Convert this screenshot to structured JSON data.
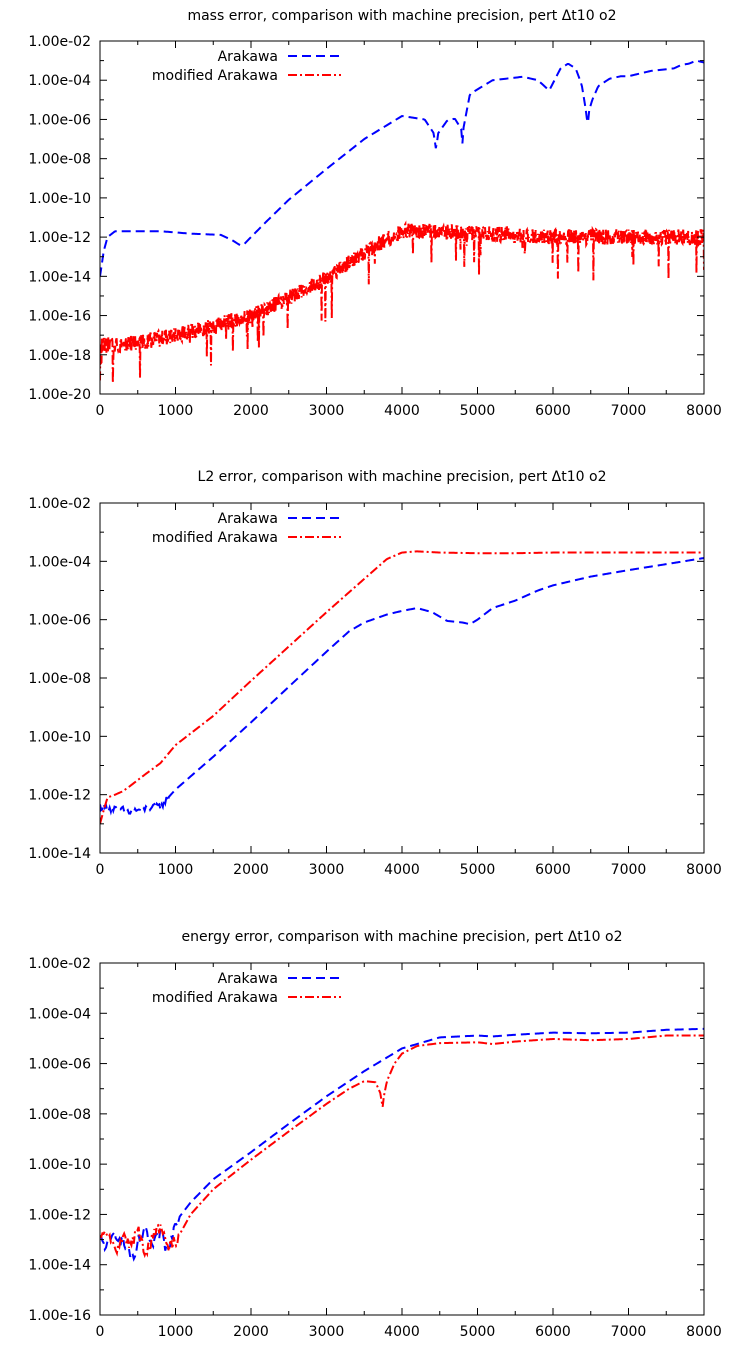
{
  "chart_data": [
    {
      "type": "line",
      "title": "mass error, comparison with machine precision, pert Δt10 o2",
      "xlabel": "",
      "ylabel": "",
      "xlim": [
        0,
        8000
      ],
      "ylim": [
        1e-20,
        0.01
      ],
      "yscale": "log",
      "grid": false,
      "legend_position": "top-left",
      "x_ticks": [
        0,
        1000,
        2000,
        3000,
        4000,
        5000,
        6000,
        7000,
        8000
      ],
      "x_tick_labels": [
        "0",
        "1000",
        "2000",
        "3000",
        "4000",
        "5000",
        "6000",
        "7000",
        "8000"
      ],
      "y_ticks": [
        0.01,
        0.0001,
        1e-06,
        1e-08,
        1e-10,
        1e-12,
        1e-14,
        1e-16,
        1e-18,
        1e-20
      ],
      "y_tick_labels": [
        "1.00e-02",
        "1.00e-04",
        "1.00e-06",
        "1.00e-08",
        "1.00e-10",
        "1.00e-12",
        "1.00e-14",
        "1.00e-16",
        "1.00e-18",
        "1.00e-20"
      ],
      "series": [
        {
          "name": "Arakawa",
          "color": "#0000ff",
          "dash": "dashed",
          "x": [
            0,
            50,
            100,
            200,
            400,
            800,
            1200,
            1600,
            1750,
            1850,
            1900,
            2000,
            2200,
            2500,
            3000,
            3500,
            4000,
            4300,
            4420,
            4450,
            4480,
            4600,
            4700,
            4790,
            4800,
            4810,
            4900,
            5200,
            5600,
            5800,
            5950,
            6100,
            6200,
            6300,
            6380,
            6430,
            6460,
            6480,
            6520,
            6600,
            6750,
            6900,
            7000,
            7300,
            7600,
            7700,
            7800,
            7900,
            8000
          ],
          "y": [
            1e-14,
            2e-13,
            1e-12,
            2e-12,
            2e-12,
            2e-12,
            1.5e-12,
            1.3e-12,
            7e-13,
            4e-13,
            4e-13,
            1e-12,
            6e-12,
            8e-11,
            3e-09,
            1e-07,
            1.5e-06,
            1e-06,
            2e-07,
            3e-08,
            2e-07,
            9e-07,
            1.1e-06,
            3e-07,
            6e-08,
            3e-07,
            2e-05,
            0.0001,
            0.00015,
            0.0001,
            3e-05,
            0.0004,
            0.0007,
            0.0004,
            6e-05,
            4e-06,
            5e-07,
            3e-06,
            1e-05,
            5e-05,
            0.00012,
            0.00016,
            0.00016,
            0.0003,
            0.0004,
            0.0006,
            0.0007,
            0.001,
            0.0008
          ]
        },
        {
          "name": "modified Arakawa",
          "color": "#ff0000",
          "dash": "dash-dot",
          "x": [
            0,
            500,
            1000,
            1500,
            2000,
            2500,
            3000,
            3500,
            3800,
            4000,
            4500,
            5000,
            5500,
            6000,
            6500,
            7000,
            7500,
            8000
          ],
          "y": [
            3e-18,
            4e-18,
            1e-17,
            3e-17,
            1e-16,
            8e-16,
            8e-15,
            1.5e-13,
            8e-13,
            2e-12,
            2e-12,
            1.5e-12,
            1.2e-12,
            1e-12,
            1e-12,
            1e-12,
            1e-12,
            1e-12
          ]
        }
      ]
    },
    {
      "type": "line",
      "title": "L2 error, comparison with machine precision, pert Δt10 o2",
      "xlabel": "",
      "ylabel": "",
      "xlim": [
        0,
        8000
      ],
      "ylim": [
        1e-14,
        0.01
      ],
      "yscale": "log",
      "grid": false,
      "legend_position": "top-left",
      "x_ticks": [
        0,
        1000,
        2000,
        3000,
        4000,
        5000,
        6000,
        7000,
        8000
      ],
      "x_tick_labels": [
        "0",
        "1000",
        "2000",
        "3000",
        "4000",
        "5000",
        "6000",
        "7000",
        "8000"
      ],
      "y_ticks": [
        0.01,
        0.0001,
        1e-06,
        1e-08,
        1e-10,
        1e-12,
        1e-14
      ],
      "y_tick_labels": [
        "1.00e-02",
        "1.00e-04",
        "1.00e-06",
        "1.00e-08",
        "1.00e-10",
        "1.00e-12",
        "1.00e-14"
      ],
      "series": [
        {
          "name": "Arakawa",
          "color": "#0000ff",
          "dash": "dashed",
          "x": [
            0,
            100,
            200,
            300,
            400,
            500,
            600,
            700,
            800,
            1000,
            1500,
            2000,
            2500,
            3000,
            3300,
            3500,
            3800,
            4000,
            4200,
            4400,
            4600,
            4800,
            4900,
            5000,
            5200,
            5500,
            5800,
            6000,
            6500,
            7000,
            7500,
            8000
          ],
          "y": [
            4e-13,
            3.5e-13,
            3.2e-13,
            3e-13,
            2.5e-13,
            3e-13,
            3.3e-13,
            3.5e-13,
            4e-13,
            1.5e-12,
            2e-11,
            3e-10,
            5e-09,
            8e-08,
            4e-07,
            8e-07,
            1.5e-06,
            2e-06,
            2.5e-06,
            1.8e-06,
            9e-07,
            8e-07,
            7e-07,
            1e-06,
            2.5e-06,
            4.5e-06,
            1e-05,
            1.5e-05,
            3e-05,
            5e-05,
            8e-05,
            0.00013
          ]
        },
        {
          "name": "modified Arakawa",
          "color": "#ff0000",
          "dash": "dash-dot",
          "x": [
            0,
            50,
            100,
            200,
            300,
            400,
            600,
            800,
            1000,
            1500,
            2000,
            2500,
            3000,
            3500,
            3800,
            4000,
            4200,
            4500,
            5000,
            5500,
            6000,
            6500,
            7000,
            7500,
            8000
          ],
          "y": [
            1e-13,
            3e-13,
            8e-13,
            1e-12,
            1.3e-12,
            2e-12,
            5e-12,
            1.2e-11,
            5e-11,
            5e-10,
            8e-09,
            1.2e-07,
            1.8e-06,
            2.5e-05,
            0.00012,
            0.0002,
            0.00022,
            0.0002,
            0.00019,
            0.00019,
            0.0002,
            0.0002,
            0.0002,
            0.0002,
            0.0002
          ]
        }
      ]
    },
    {
      "type": "line",
      "title": "energy error, comparison with machine precision, pert Δt10 o2",
      "xlabel": "",
      "ylabel": "",
      "xlim": [
        0,
        8000
      ],
      "ylim": [
        1e-16,
        0.01
      ],
      "yscale": "log",
      "grid": false,
      "legend_position": "top-left",
      "x_ticks": [
        0,
        1000,
        2000,
        3000,
        4000,
        5000,
        6000,
        7000,
        8000
      ],
      "x_tick_labels": [
        "0",
        "1000",
        "2000",
        "3000",
        "4000",
        "5000",
        "6000",
        "7000",
        "8000"
      ],
      "y_ticks": [
        0.01,
        0.0001,
        1e-06,
        1e-08,
        1e-10,
        1e-12,
        1e-14,
        1e-16
      ],
      "y_tick_labels": [
        "1.00e-02",
        "1.00e-04",
        "1.00e-06",
        "1.00e-08",
        "1.00e-10",
        "1.00e-12",
        "1.00e-14",
        "1.00e-16"
      ],
      "series": [
        {
          "name": "Arakawa",
          "color": "#0000ff",
          "dash": "dashed",
          "x": [
            0,
            100,
            200,
            300,
            400,
            450,
            500,
            600,
            700,
            800,
            900,
            1000,
            1200,
            1500,
            2000,
            2500,
            3000,
            3500,
            4000,
            4500,
            5000,
            5200,
            5500,
            6000,
            6500,
            7000,
            7500,
            8000
          ],
          "y": [
            1e-13,
            5e-14,
            2e-13,
            8e-14,
            3e-14,
            1e-14,
            8e-14,
            2e-13,
            5e-14,
            2e-13,
            3e-14,
            5e-13,
            3e-12,
            2.5e-11,
            3e-10,
            4e-09,
            5e-08,
            5e-07,
            4e-06,
            1.1e-05,
            1.3e-05,
            1.2e-05,
            1.4e-05,
            1.7e-05,
            1.6e-05,
            1.7e-05,
            2.2e-05,
            2.4e-05
          ]
        },
        {
          "name": "modified Arakawa",
          "color": "#ff0000",
          "dash": "dash-dot",
          "x": [
            0,
            100,
            200,
            300,
            400,
            500,
            600,
            700,
            800,
            900,
            1000,
            1200,
            1500,
            2000,
            2500,
            3000,
            3300,
            3500,
            3650,
            3720,
            3740,
            3760,
            3800,
            3900,
            4000,
            4200,
            4500,
            5000,
            5200,
            5500,
            6000,
            6500,
            7000,
            7500,
            8000
          ],
          "y": [
            1e-13,
            2e-13,
            3e-14,
            1.5e-13,
            5e-14,
            3e-13,
            2e-14,
            1.5e-13,
            3e-13,
            5e-14,
            8e-14,
            1e-12,
            1e-11,
            1.5e-10,
            2e-09,
            2.5e-08,
            1e-07,
            2e-07,
            1.8e-07,
            6e-08,
            1.5e-08,
            5e-08,
            2e-07,
            1e-06,
            2.5e-06,
            5e-06,
            6.5e-06,
            7e-06,
            6e-06,
            7.5e-06,
            9.5e-06,
            8.5e-06,
            9.5e-06,
            1.3e-05,
            1.3e-05
          ]
        }
      ]
    }
  ]
}
